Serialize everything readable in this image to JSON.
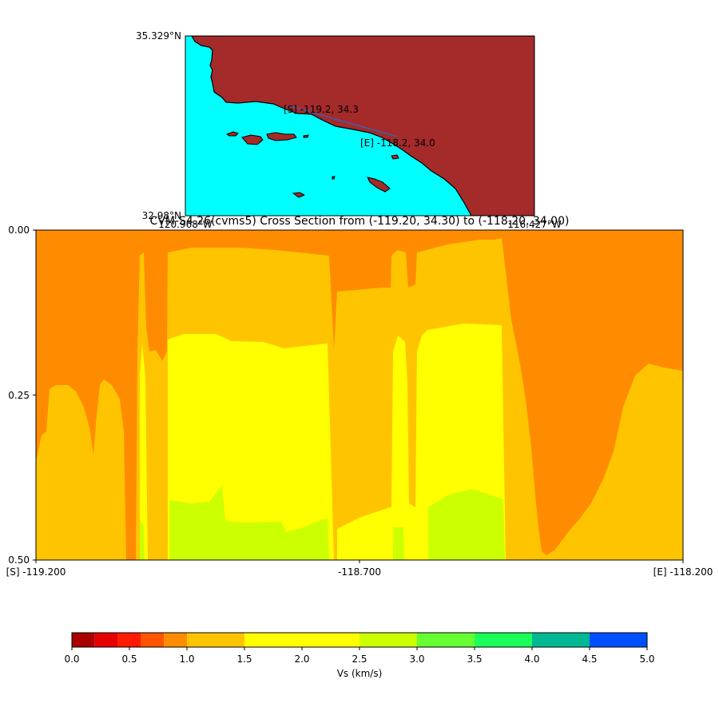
{
  "map": {
    "lat_top_label": "35.329°N",
    "lat_bottom_label": "32.98°N",
    "lon_left_label": "120.968°W",
    "lon_right_label": "116.427°W",
    "start_label": "[S] -119.2, 34.3",
    "end_label": "[E] -118.2, 34.0",
    "ocean_color": "#00ffff",
    "land_color": "#a52a2a",
    "line_color": "#3f5fa8"
  },
  "chart_data": {
    "type": "heatmap",
    "title": "CVM-S4.26(cvms5) Cross Section from (-119.20, 34.30) to (-118.20, 34.00)",
    "x_ticks": [
      "[S] -119.200",
      "-118.700",
      "[E] -118.200"
    ],
    "y_ticks": [
      "0.00",
      "0.25",
      "0.50"
    ],
    "xlim": [
      -119.2,
      -118.2
    ],
    "ylim": [
      0.5,
      0.0
    ],
    "colorbar": {
      "label": "Vs (km/s)",
      "ticks": [
        "0.0",
        "0.5",
        "1.0",
        "1.5",
        "2.0",
        "2.5",
        "3.0",
        "3.5",
        "4.0",
        "4.5",
        "5.0"
      ],
      "bins": [
        {
          "lo": 0.0,
          "hi": 0.2,
          "color": "#aa0000"
        },
        {
          "lo": 0.2,
          "hi": 0.4,
          "color": "#e60000"
        },
        {
          "lo": 0.4,
          "hi": 0.6,
          "color": "#ff1a00"
        },
        {
          "lo": 0.6,
          "hi": 0.8,
          "color": "#ff5500"
        },
        {
          "lo": 0.8,
          "hi": 1.0,
          "color": "#ff8c00"
        },
        {
          "lo": 1.0,
          "hi": 1.5,
          "color": "#ffc400"
        },
        {
          "lo": 1.5,
          "hi": 2.5,
          "color": "#ffff00"
        },
        {
          "lo": 2.5,
          "hi": 3.0,
          "color": "#ccff00"
        },
        {
          "lo": 3.0,
          "hi": 3.5,
          "color": "#66ff33"
        },
        {
          "lo": 3.5,
          "hi": 4.0,
          "color": "#1aff5a"
        },
        {
          "lo": 4.0,
          "hi": 4.5,
          "color": "#00b894"
        },
        {
          "lo": 4.5,
          "hi": 5.0,
          "color": "#0050ff"
        }
      ]
    }
  }
}
